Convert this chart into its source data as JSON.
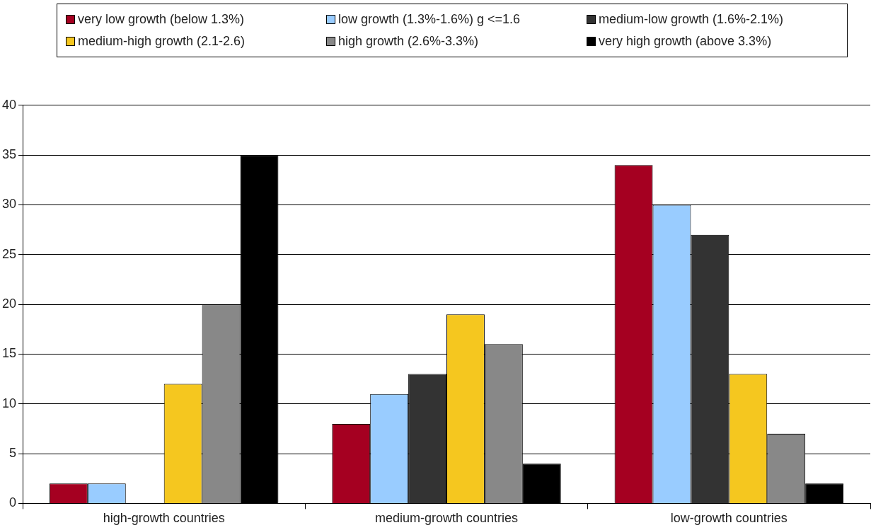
{
  "chart_data": {
    "type": "bar",
    "categories": [
      "high-growth countries",
      "medium-growth countries",
      "low-growth countries"
    ],
    "series": [
      {
        "name": "very low growth (below 1.3%)",
        "color": "#a50021",
        "values": [
          2,
          8,
          34
        ]
      },
      {
        "name": "low growth (1.3%-1.6%) g <=1.6",
        "color": "#99ccff",
        "values": [
          2,
          11,
          30
        ]
      },
      {
        "name": "medium-low growth (1.6%-2.1%)",
        "color": "#333333",
        "values": [
          0,
          13,
          27
        ]
      },
      {
        "name": "medium-high growth (2.1-2.6)",
        "color": "#f5c71f",
        "values": [
          12,
          19,
          13
        ]
      },
      {
        "name": "high growth (2.6%-3.3%)",
        "color": "#888888",
        "values": [
          20,
          16,
          7
        ]
      },
      {
        "name": "very high growth (above 3.3%)",
        "color": "#000000",
        "values": [
          35,
          4,
          2
        ]
      }
    ],
    "ylim": [
      0,
      40
    ],
    "yticks": [
      0,
      5,
      10,
      15,
      20,
      25,
      30,
      35,
      40
    ],
    "grid": "y",
    "legend": "top"
  }
}
